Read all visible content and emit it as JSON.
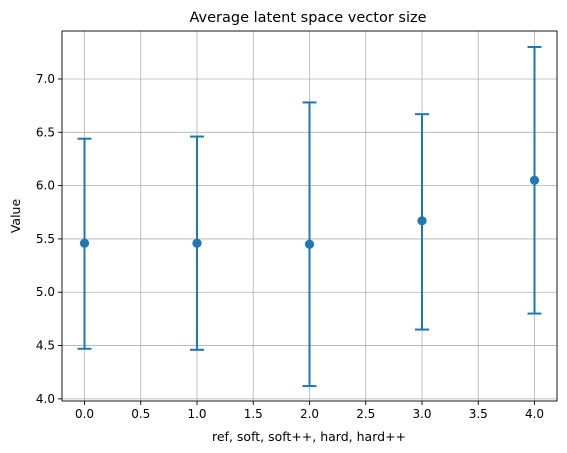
{
  "chart_data": {
    "type": "scatter",
    "title": "Average  latent space vector size",
    "xlabel": "ref, soft, soft++, hard, hard++",
    "ylabel": "Value",
    "xlim": [
      -0.2,
      4.2
    ],
    "ylim": [
      3.98,
      7.45
    ],
    "x_ticks": [
      0.0,
      0.5,
      1.0,
      1.5,
      2.0,
      2.5,
      3.0,
      3.5,
      4.0
    ],
    "x_tick_labels": [
      "0.0",
      "0.5",
      "1.0",
      "1.5",
      "2.0",
      "2.5",
      "3.0",
      "3.5",
      "4.0"
    ],
    "y_ticks": [
      4.0,
      4.5,
      5.0,
      5.5,
      6.0,
      6.5,
      7.0
    ],
    "y_tick_labels": [
      "4.0",
      "4.5",
      "5.0",
      "5.5",
      "6.0",
      "6.5",
      "7.0"
    ],
    "grid": true,
    "color": "#1f77b4",
    "series": [
      {
        "x": [
          0,
          1,
          2,
          3,
          4
        ],
        "values": [
          5.46,
          5.46,
          5.45,
          5.67,
          6.05
        ],
        "error_low": [
          4.47,
          4.46,
          4.12,
          4.65,
          4.8
        ],
        "error_high": [
          6.44,
          6.46,
          6.78,
          6.67,
          7.3
        ]
      }
    ]
  }
}
